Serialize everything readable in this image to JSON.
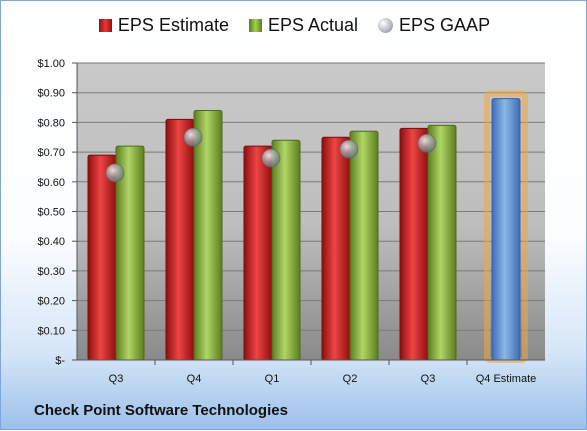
{
  "chart_data": {
    "type": "bar",
    "categories": [
      "Q3",
      "Q4",
      "Q1",
      "Q2",
      "Q3",
      "Q4 Estimate"
    ],
    "series": [
      {
        "name": "EPS Estimate",
        "color": "#d42a2a",
        "values": [
          0.69,
          0.81,
          0.72,
          0.75,
          0.78,
          null
        ]
      },
      {
        "name": "EPS Actual",
        "color": "#8fb84a",
        "values": [
          0.72,
          0.84,
          0.74,
          0.77,
          0.79,
          null
        ]
      },
      {
        "name": "EPS GAAP",
        "color": "#b0b4ba",
        "values": [
          0.63,
          0.75,
          0.68,
          0.71,
          0.73,
          null
        ]
      }
    ],
    "forecast": {
      "category": "Q4 Estimate",
      "value": 0.88,
      "color": "#5b8fd0",
      "highlight": "#f4a540"
    },
    "y_ticks": [
      "$-",
      "$0.10",
      "$0.20",
      "$0.30",
      "$0.40",
      "$0.50",
      "$0.60",
      "$0.70",
      "$0.80",
      "$0.90",
      "$1.00"
    ],
    "ylim": [
      0,
      1.0
    ],
    "legend_position": "top",
    "grid": true,
    "title": "",
    "xlabel": "",
    "ylabel": ""
  },
  "footer": {
    "company": "Check Point Software Technologies"
  }
}
